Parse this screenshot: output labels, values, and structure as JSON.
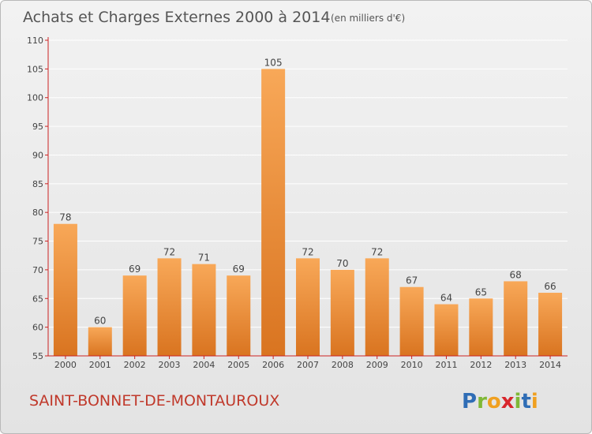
{
  "title": "Achats et Charges Externes 2000 à 2014",
  "subtitle": "(en milliers d'€)",
  "commune": "SAINT-BONNET-DE-MONTAUROUX",
  "logo": {
    "text": "Proxiti",
    "letters": [
      "P",
      "r",
      "o",
      "x",
      "i",
      "t",
      "i"
    ],
    "colors": [
      "#2f6db5",
      "#7fb836",
      "#f0a020",
      "#d8262c",
      "#7fb836",
      "#2f6db5",
      "#f0a020"
    ]
  },
  "colors": {
    "bar_light": "#f8a858",
    "bar_dark": "#d97420",
    "axis": "#cc2222",
    "grid": "#ffffff"
  },
  "chart_data": {
    "type": "bar",
    "categories": [
      "2000",
      "2001",
      "2002",
      "2003",
      "2004",
      "2005",
      "2006",
      "2007",
      "2008",
      "2009",
      "2010",
      "2011",
      "2012",
      "2013",
      "2014"
    ],
    "values": [
      78,
      60,
      69,
      72,
      71,
      69,
      105,
      72,
      70,
      72,
      67,
      64,
      65,
      68,
      66
    ],
    "ylim": [
      55,
      110
    ],
    "yticks": [
      55,
      60,
      65,
      70,
      75,
      80,
      85,
      90,
      95,
      100,
      105,
      110
    ],
    "grid": true
  }
}
